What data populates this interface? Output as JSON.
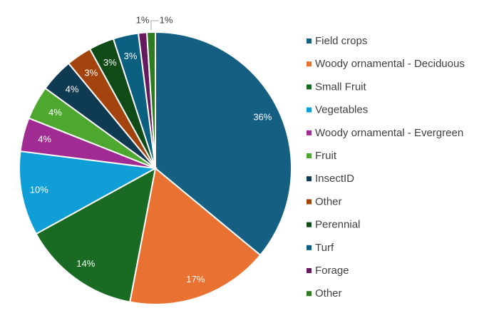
{
  "chart_data": {
    "type": "pie",
    "title": "",
    "legend_position": "right",
    "start_angle": "top, clockwise",
    "slices": [
      {
        "label": "Field crops",
        "value": 36,
        "data_label": "36%",
        "color": "#156082"
      },
      {
        "label": "Woody ornamental - Deciduous",
        "value": 17,
        "data_label": "17%",
        "color": "#E97132"
      },
      {
        "label": "Small Fruit",
        "value": 14,
        "data_label": "14%",
        "color": "#196B24"
      },
      {
        "label": "Vegetables",
        "value": 10,
        "data_label": "10%",
        "color": "#0F9ED5"
      },
      {
        "label": "Woody ornamental - Evergreen",
        "value": 4,
        "data_label": "4%",
        "color": "#A02B93"
      },
      {
        "label": "Fruit",
        "value": 4,
        "data_label": "4%",
        "color": "#4EA72E"
      },
      {
        "label": "InsectID",
        "value": 4,
        "data_label": "4%",
        "color": "#0E3A52"
      },
      {
        "label": "Other",
        "value": 3,
        "data_label": "3%",
        "color": "#A3440F"
      },
      {
        "label": "Perennial",
        "value": 3,
        "data_label": "3%",
        "color": "#0F4A17"
      },
      {
        "label": "Turf",
        "value": 3,
        "data_label": "3%",
        "color": "#0B5F80"
      },
      {
        "label": "Forage",
        "value": 1,
        "data_label": "1%",
        "color": "#651A5E"
      },
      {
        "label": "Other",
        "value": 1,
        "data_label": "1%",
        "color": "#2F7A22"
      }
    ]
  }
}
